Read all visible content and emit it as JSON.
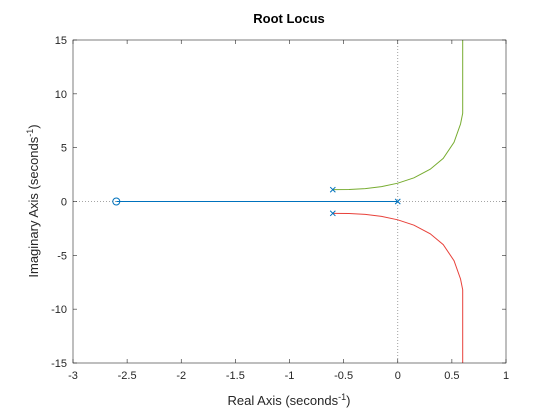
{
  "chart_data": {
    "type": "line",
    "title": "Root Locus",
    "xlabel": {
      "text": "Real  Axis  (seconds",
      "superscript": "-1",
      "suffix": ")"
    },
    "ylabel": {
      "text": "Imaginary  Axis  (seconds",
      "superscript": "-1",
      "suffix": ")"
    },
    "xlim": [
      -3,
      1
    ],
    "ylim": [
      -15,
      15
    ],
    "xticks": [
      -3,
      -2.5,
      -2,
      -1.5,
      -1,
      -0.5,
      0,
      0.5,
      1
    ],
    "yticks": [
      -15,
      -10,
      -5,
      0,
      5,
      10,
      15
    ],
    "series": [
      {
        "color": "#0072bd",
        "x": [
          -2.6,
          0
        ],
        "values": [
          0,
          0
        ]
      },
      {
        "color": "#77ac30",
        "x": [
          -0.6,
          -0.45,
          -0.3,
          -0.15,
          0,
          0.15,
          0.3,
          0.42,
          0.52,
          0.58,
          0.6,
          0.6
        ],
        "values": [
          1.1,
          1.12,
          1.2,
          1.38,
          1.7,
          2.2,
          3.0,
          4.0,
          5.5,
          7.2,
          8.2,
          15
        ]
      },
      {
        "color": "#e8413a",
        "x": [
          -0.6,
          -0.45,
          -0.3,
          -0.15,
          0,
          0.15,
          0.3,
          0.42,
          0.52,
          0.58,
          0.6,
          0.6
        ],
        "values": [
          -1.1,
          -1.12,
          -1.2,
          -1.38,
          -1.7,
          -2.2,
          -3.0,
          -4.0,
          -5.5,
          -7.2,
          -8.2,
          -15
        ]
      }
    ],
    "poles": {
      "color": "#0072bd",
      "x": [
        0,
        -0.6,
        -0.6
      ],
      "values": [
        0,
        1.1,
        -1.1
      ]
    },
    "zeros": {
      "color": "#0072bd",
      "x": [
        -2.6
      ],
      "values": [
        0
      ]
    }
  }
}
